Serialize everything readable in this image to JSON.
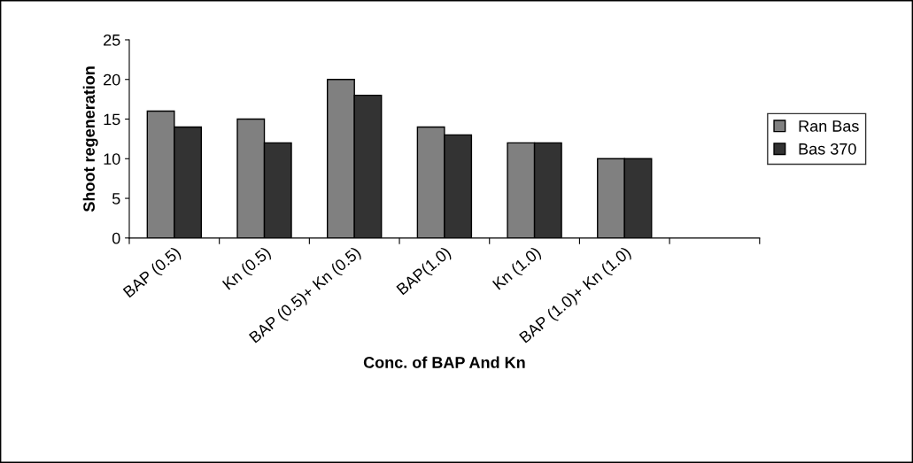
{
  "chart_data": {
    "type": "bar",
    "xlabel": "Conc. of BAP And Kn",
    "ylabel": "Shoot regeneration",
    "categories": [
      "BAP (0.5)",
      "Kn (0.5)",
      "BAP (0.5)+ Kn (0.5)",
      "BAP(1.0)",
      "Kn (1.0)",
      "BAP (1.0)+ Kn (1.0)",
      null
    ],
    "series": [
      {
        "name": "Ran Bas",
        "color": "#808080",
        "values": [
          16,
          15,
          20,
          14,
          12,
          10,
          null
        ]
      },
      {
        "name": "Bas 370",
        "color": "#333333",
        "values": [
          14,
          12,
          18,
          13,
          12,
          10,
          null
        ]
      }
    ],
    "ylim": [
      0,
      25
    ],
    "yticks": [
      0,
      5,
      10,
      15,
      20,
      25
    ],
    "grid": false,
    "legend": "right"
  }
}
